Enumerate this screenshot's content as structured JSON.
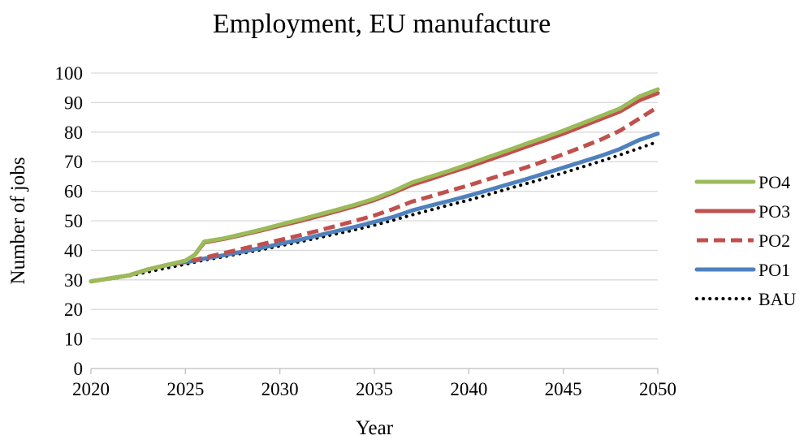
{
  "chart_data": {
    "type": "line",
    "title": "Employment, EU manufacture",
    "xlabel": "Year",
    "ylabel": "Number of jobs",
    "xlim": [
      2020,
      2050
    ],
    "ylim": [
      0,
      100
    ],
    "x_ticks": [
      2020,
      2025,
      2030,
      2035,
      2040,
      2045,
      2050
    ],
    "y_ticks": [
      0,
      10,
      20,
      30,
      40,
      50,
      60,
      70,
      80,
      90,
      100
    ],
    "grid": "horizontal",
    "legend_position": "right",
    "x": [
      2020,
      2021,
      2022,
      2023,
      2024,
      2025,
      2025.5,
      2026,
      2027,
      2028,
      2029,
      2030,
      2031,
      2032,
      2033,
      2034,
      2035,
      2036,
      2037,
      2038,
      2039,
      2040,
      2041,
      2042,
      2043,
      2044,
      2045,
      2046,
      2047,
      2048,
      2049,
      2050
    ],
    "series": [
      {
        "name": "PO4",
        "color": "#9bbb59",
        "dash": "solid",
        "values": [
          29.5,
          30.5,
          31.5,
          33.5,
          35.0,
          36.5,
          38.5,
          43.0,
          44.0,
          45.5,
          47.0,
          48.7,
          50.3,
          52.0,
          53.7,
          55.5,
          57.5,
          60.0,
          63.0,
          65.0,
          67.0,
          69.2,
          71.5,
          73.7,
          76.0,
          78.2,
          80.5,
          83.0,
          85.5,
          88.0,
          92.0,
          94.5
        ]
      },
      {
        "name": "PO3",
        "color": "#c0504d",
        "dash": "solid",
        "values": [
          29.5,
          30.5,
          31.5,
          33.5,
          35.0,
          36.5,
          38.5,
          42.7,
          43.8,
          45.2,
          46.7,
          48.3,
          49.8,
          51.5,
          53.2,
          55.0,
          57.0,
          59.5,
          62.2,
          64.2,
          66.3,
          68.3,
          70.5,
          72.7,
          75.0,
          77.2,
          79.5,
          82.0,
          84.5,
          87.0,
          90.7,
          93.2
        ]
      },
      {
        "name": "PO2",
        "color": "#c0504d",
        "dash": "dashed",
        "values": [
          29.5,
          30.5,
          31.5,
          33.5,
          35.0,
          36.2,
          36.8,
          37.5,
          39.0,
          40.5,
          42.0,
          43.5,
          45.0,
          46.6,
          48.3,
          50.0,
          51.8,
          54.0,
          56.5,
          58.3,
          60.2,
          62.0,
          64.0,
          66.0,
          68.0,
          70.2,
          72.5,
          75.0,
          77.5,
          80.5,
          84.5,
          88.5
        ]
      },
      {
        "name": "PO1",
        "color": "#4f81bd",
        "dash": "solid",
        "values": [
          29.5,
          30.5,
          31.5,
          33.5,
          35.0,
          36.0,
          36.5,
          37.2,
          38.3,
          39.5,
          40.8,
          42.2,
          43.5,
          45.0,
          46.5,
          48.0,
          49.6,
          51.3,
          53.5,
          55.2,
          56.8,
          58.5,
          60.3,
          62.2,
          64.0,
          66.0,
          68.0,
          70.0,
          72.0,
          74.3,
          77.3,
          79.5
        ]
      },
      {
        "name": "BAU",
        "color": "#000000",
        "dash": "dotted",
        "values": [
          29.5,
          30.3,
          31.3,
          32.7,
          34.0,
          35.3,
          36.0,
          36.7,
          37.8,
          39.0,
          40.2,
          41.5,
          42.8,
          44.2,
          45.6,
          47.0,
          48.5,
          50.2,
          52.0,
          53.7,
          55.4,
          57.0,
          58.8,
          60.7,
          62.5,
          64.3,
          66.2,
          68.2,
          70.2,
          72.3,
          74.5,
          76.8
        ]
      }
    ]
  }
}
